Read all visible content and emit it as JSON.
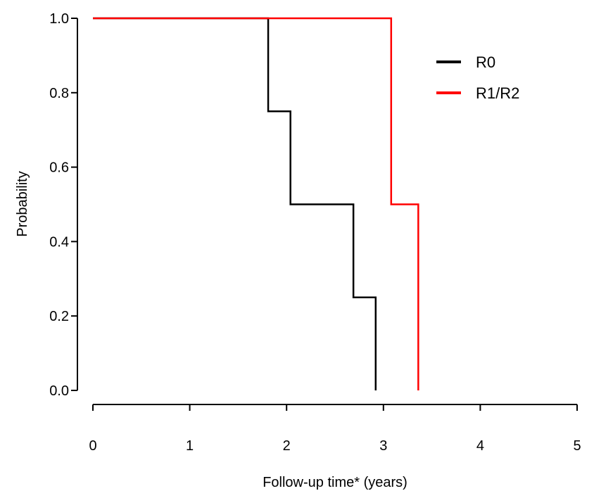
{
  "chart_data": {
    "type": "line",
    "title": "",
    "xlabel": "Follow-up time* (years)",
    "ylabel": "Probability",
    "xlim": [
      0,
      5
    ],
    "ylim": [
      0,
      1
    ],
    "x_ticks": [
      "0",
      "1",
      "2",
      "3",
      "4",
      "5"
    ],
    "y_ticks": [
      "0.0",
      "0.2",
      "0.4",
      "0.6",
      "0.8",
      "1.0"
    ],
    "grid": false,
    "legend_position": "top-right",
    "series": [
      {
        "name": "R0",
        "color": "#000000",
        "step": true,
        "points": [
          [
            0,
            1.0
          ],
          [
            1.81,
            0.75
          ],
          [
            2.04,
            0.5
          ],
          [
            2.69,
            0.25
          ],
          [
            2.92,
            0.0
          ]
        ]
      },
      {
        "name": "R1/R2",
        "color": "#ff0000",
        "step": true,
        "points": [
          [
            0,
            1.0
          ],
          [
            3.08,
            0.5
          ],
          [
            3.36,
            0.0
          ]
        ]
      }
    ]
  }
}
